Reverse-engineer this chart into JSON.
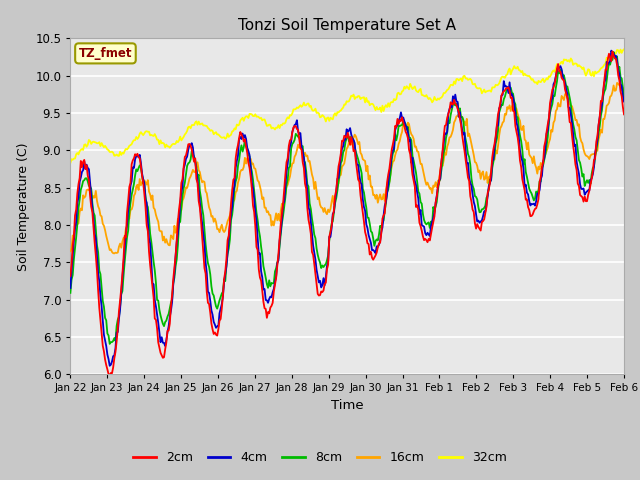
{
  "title": "Tonzi Soil Temperature Set A",
  "xlabel": "Time",
  "ylabel": "Soil Temperature (C)",
  "ylim": [
    6.0,
    10.5
  ],
  "annotation_text": "TZ_fmet",
  "annotation_color": "#8B0000",
  "annotation_bg": "#FFFFCC",
  "annotation_border": "#999900",
  "colors": {
    "2cm": "#FF0000",
    "4cm": "#0000CC",
    "8cm": "#00BB00",
    "16cm": "#FFA500",
    "32cm": "#FFFF00"
  },
  "fig_bg": "#C8C8C8",
  "plot_bg": "#E8E8E8",
  "x_tick_labels": [
    "Jan 22",
    "Jan 23",
    "Jan 24",
    "Jan 25",
    "Jan 26",
    "Jan 27",
    "Jan 28",
    "Jan 29",
    "Jan 30",
    "Jan 31",
    "Feb 1",
    "Feb 2",
    "Feb 3",
    "Feb 4",
    "Feb 5",
    "Feb 6"
  ],
  "n_points": 480,
  "legend_labels": [
    "2cm",
    "4cm",
    "8cm",
    "16cm",
    "32cm"
  ]
}
